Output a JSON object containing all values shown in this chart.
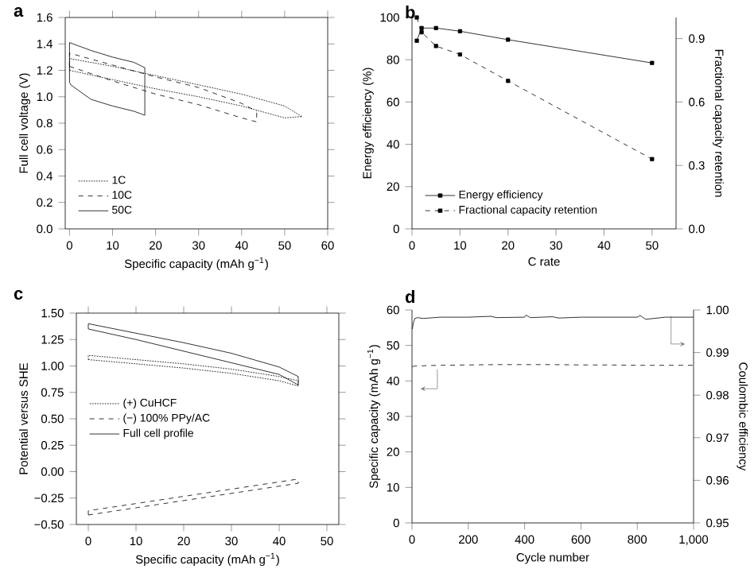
{
  "chart_data": [
    {
      "type": "line",
      "title": "a",
      "xlabel": "Specific capacity (mAh g$^{−1}$)",
      "ylabel": "Full cell voltage (V)",
      "xlim": [
        -1,
        60
      ],
      "ylim": [
        0,
        1.6
      ],
      "xticks": [
        0,
        10,
        20,
        30,
        40,
        50,
        60
      ],
      "yticks": [
        {
          "value": 0,
          "label": "0.0"
        },
        {
          "value": 0.2,
          "label": "0.2"
        },
        {
          "value": 0.4,
          "label": "0.4"
        },
        {
          "value": 0.6,
          "label": "0.6"
        },
        {
          "value": 0.8,
          "label": "0.8"
        },
        {
          "value": 1.0,
          "label": "1.0"
        },
        {
          "value": 1.2,
          "label": "1.2"
        },
        {
          "value": 1.4,
          "label": "1.4"
        },
        {
          "value": 1.6,
          "label": "1.6"
        }
      ],
      "legend": "bottom left",
      "series": [
        {
          "name": "1C",
          "color": "#000000",
          "line_style": "dotted",
          "x": [
            0,
            0,
            10,
            20,
            30,
            40,
            50,
            54
          ],
          "values": [
            1.2,
            1.29,
            1.23,
            1.16,
            1.09,
            1.02,
            0.93,
            0.85
          ]
        },
        {
          "color": "#000000",
          "line_style": "dotted",
          "x": [
            0,
            10,
            20,
            30,
            40,
            50,
            54
          ],
          "values": [
            1.2,
            1.13,
            1.06,
            1.0,
            0.93,
            0.84,
            0.85
          ]
        },
        {
          "name": "10C",
          "color": "#000000",
          "line_style": "dashed",
          "x": [
            0,
            0,
            10,
            20,
            30,
            40,
            43.5
          ],
          "values": [
            1.23,
            1.33,
            1.24,
            1.15,
            1.07,
            0.95,
            0.89
          ]
        },
        {
          "color": "#000000",
          "line_style": "dashed",
          "x": [
            0,
            10,
            20,
            30,
            40,
            43.5,
            43.5
          ],
          "values": [
            1.23,
            1.12,
            1.02,
            0.94,
            0.84,
            0.81,
            0.89
          ]
        },
        {
          "name": "50C",
          "color": "#000000",
          "line_style": "solid",
          "x": [
            0,
            0,
            5,
            10,
            15,
            17.5
          ],
          "values": [
            1.11,
            1.41,
            1.35,
            1.3,
            1.26,
            1.22
          ]
        },
        {
          "color": "#000000",
          "line_style": "solid",
          "x": [
            0,
            0.3,
            2,
            5,
            10,
            15,
            17.5,
            17.5
          ],
          "values": [
            1.11,
            1.09,
            1.05,
            0.98,
            0.93,
            0.89,
            0.86,
            1.22
          ]
        }
      ]
    },
    {
      "type": "line",
      "title": "b",
      "xlabel": "C rate",
      "ylabel": "Energy efficiency (%)",
      "y2label": "Fractional capacity retention",
      "xlim": [
        0,
        55
      ],
      "ylim": [
        0,
        100
      ],
      "y2lim": [
        0,
        1.0
      ],
      "xticks": [
        0,
        10,
        20,
        30,
        40,
        50
      ],
      "yticks": [
        0,
        20,
        40,
        60,
        80,
        100
      ],
      "y2ticks": [
        {
          "value": 0,
          "label": "0.0"
        },
        {
          "value": 0.3,
          "label": "0.3"
        },
        {
          "value": 0.6,
          "label": "0.6"
        },
        {
          "value": 0.9,
          "label": "0.9"
        }
      ],
      "legend": "bottom left",
      "marker": "square",
      "series": [
        {
          "name": "Energy efficiency",
          "color": "#000000",
          "line_style": "solid",
          "x": [
            1,
            2,
            5,
            10,
            20,
            50
          ],
          "values": [
            89,
            95,
            95,
            93.5,
            89.5,
            78.5
          ]
        },
        {
          "name": "Fractional capacity retention",
          "color": "#000000",
          "line_style": "dashed",
          "axis": "y2",
          "x": [
            1,
            2,
            5,
            10,
            20,
            50
          ],
          "values": [
            1.0,
            0.93,
            0.865,
            0.825,
            0.7,
            0.33
          ]
        }
      ]
    },
    {
      "type": "line",
      "title": "c",
      "xlabel": "Specific capacity (mAh g$^{−1}$)",
      "ylabel": "Potential versus SHE",
      "xlim": [
        -2.5,
        52.5
      ],
      "ylim": [
        -0.5,
        1.5
      ],
      "xticks": [
        0,
        10,
        20,
        30,
        40,
        50
      ],
      "yticks": [
        {
          "value": -0.5,
          "label": "−0.50"
        },
        {
          "value": -0.25,
          "label": "−0.25"
        },
        {
          "value": 0,
          "label": "0.00"
        },
        {
          "value": 0.25,
          "label": "0.25"
        },
        {
          "value": 0.5,
          "label": "0.50"
        },
        {
          "value": 0.75,
          "label": "0.75"
        },
        {
          "value": 1.0,
          "label": "1.00"
        },
        {
          "value": 1.25,
          "label": "1.25"
        },
        {
          "value": 1.5,
          "label": "1.50"
        }
      ],
      "legend": "left",
      "series": [
        {
          "name": "(+) CuHCF",
          "color": "#000000",
          "line_style": "dotted",
          "x": [
            0,
            0,
            10,
            20,
            30,
            40,
            44
          ],
          "values": [
            1.06,
            1.1,
            1.06,
            1.02,
            0.97,
            0.9,
            0.86
          ]
        },
        {
          "color": "#000000",
          "line_style": "dotted",
          "x": [
            0,
            10,
            20,
            30,
            40,
            44,
            44
          ],
          "values": [
            1.06,
            1.02,
            0.98,
            0.93,
            0.86,
            0.81,
            0.86
          ]
        },
        {
          "name": "(−) 100% PPy/AC",
          "color": "#000000",
          "line_style": "dashed",
          "x": [
            0,
            0,
            22,
            44
          ],
          "values": [
            -0.41,
            -0.37,
            -0.22,
            -0.07
          ]
        },
        {
          "color": "#000000",
          "line_style": "dashed",
          "x": [
            0,
            22,
            44,
            44
          ],
          "values": [
            -0.41,
            -0.26,
            -0.11,
            -0.07
          ]
        },
        {
          "name": "Full cell profile",
          "color": "#000000",
          "line_style": "solid",
          "x": [
            0,
            0,
            10,
            20,
            30,
            40,
            44
          ],
          "values": [
            1.35,
            1.4,
            1.31,
            1.22,
            1.12,
            0.99,
            0.9
          ]
        },
        {
          "color": "#000000",
          "line_style": "solid",
          "x": [
            0,
            10,
            20,
            30,
            40,
            44,
            44
          ],
          "values": [
            1.35,
            1.25,
            1.14,
            1.03,
            0.92,
            0.82,
            0.9
          ]
        }
      ]
    },
    {
      "type": "line",
      "title": "d",
      "xlabel": "Cycle number",
      "ylabel": "Specific capacity (mAh g$^{−1}$)",
      "y2label": "Coulombic efficiency",
      "xlim": [
        0,
        1000
      ],
      "ylim": [
        0,
        60
      ],
      "y2lim": [
        0.95,
        1.0
      ],
      "xticks": [
        0,
        200,
        400,
        600,
        800,
        {
          "value": 1000,
          "label": "1,000"
        }
      ],
      "yticks": [
        0,
        10,
        20,
        30,
        40,
        50,
        60
      ],
      "y2ticks": [
        0.95,
        0.96,
        0.97,
        0.98,
        0.99,
        {
          "value": 1.0,
          "label": "1.00"
        }
      ],
      "series": [
        {
          "color": "#000000",
          "line_style": "dashed",
          "x": [
            1,
            5,
            10,
            50,
            100,
            200,
            300,
            400,
            500,
            600,
            700,
            800,
            900,
            1000
          ],
          "values": [
            44.0,
            44.1,
            44.2,
            44.3,
            44.4,
            44.5,
            44.6,
            44.6,
            44.6,
            44.5,
            44.5,
            44.4,
            44.4,
            44.4
          ]
        },
        {
          "color": "#000000",
          "line_style": "solid",
          "axis": "y2",
          "x": [
            1,
            5,
            10,
            20,
            40,
            100,
            200,
            280,
            300,
            400,
            405,
            420,
            500,
            520,
            600,
            800,
            810,
            830,
            900,
            1000
          ],
          "values": [
            0.9955,
            0.997,
            0.998,
            0.9982,
            0.998,
            0.9983,
            0.9983,
            0.9985,
            0.9982,
            0.9983,
            0.9988,
            0.9982,
            0.9984,
            0.9981,
            0.9983,
            0.9983,
            0.9987,
            0.9978,
            0.9983,
            0.9983
          ]
        }
      ]
    }
  ]
}
